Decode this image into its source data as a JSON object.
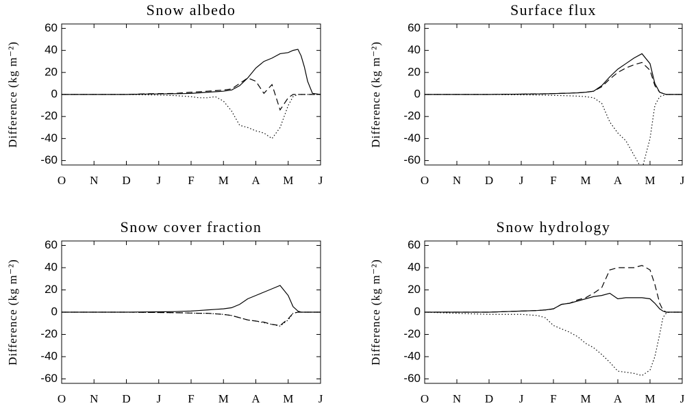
{
  "chart_data": [
    {
      "type": "line",
      "title": "Snow albedo",
      "ylabel": "Difference (kg m⁻²)",
      "x": [
        0,
        2,
        2.5,
        3,
        3.5,
        3.75,
        4,
        4.25,
        4.5,
        4.75,
        5,
        5.25,
        5.5,
        5.75,
        6,
        6.25,
        6.5,
        6.75,
        7,
        7.15,
        7.3,
        7.4,
        7.5,
        7.6,
        7.75,
        8
      ],
      "xlim": [
        0,
        8
      ],
      "ylim": [
        -64,
        64
      ],
      "xticks": [
        {
          "value": 0,
          "label": "O"
        },
        {
          "value": 1,
          "label": "N"
        },
        {
          "value": 2,
          "label": "D"
        },
        {
          "value": 3,
          "label": "J"
        },
        {
          "value": 4,
          "label": "F"
        },
        {
          "value": 5,
          "label": "M"
        },
        {
          "value": 6,
          "label": "A"
        },
        {
          "value": 7,
          "label": "M"
        },
        {
          "value": 8,
          "label": "J"
        }
      ],
      "yticks": [
        -60,
        -40,
        -20,
        0,
        20,
        40,
        60
      ],
      "series": [
        {
          "color": "#000000",
          "linestyle": "solid",
          "values": [
            0,
            0,
            0.3,
            0.5,
            0.7,
            0.8,
            1,
            1.5,
            2,
            2.5,
            3,
            4,
            8,
            15,
            24,
            30,
            33,
            37,
            38,
            40,
            41,
            35,
            25,
            12,
            1,
            0
          ]
        },
        {
          "color": "#000000",
          "linestyle": "dashed",
          "values": [
            0,
            0,
            0.5,
            0.8,
            1,
            1.5,
            2,
            2.5,
            3,
            3.5,
            4,
            5,
            10,
            15,
            12,
            1,
            9,
            -14,
            -3,
            0,
            0,
            0,
            0,
            0,
            0,
            0
          ]
        },
        {
          "color": "#000000",
          "linestyle": "dotted",
          "values": [
            0,
            0,
            -0.3,
            -0.5,
            -1,
            -1.5,
            -2,
            -3,
            -3,
            -2,
            -6,
            -15,
            -28,
            -30,
            -33,
            -35,
            -40,
            -30,
            -10,
            -2,
            0,
            0,
            0,
            0,
            0,
            0
          ]
        }
      ]
    },
    {
      "type": "line",
      "title": "Surface flux",
      "ylabel": "Difference (kg m⁻²)",
      "x": [
        0,
        2,
        2.5,
        3,
        3.5,
        3.75,
        4,
        4.25,
        4.5,
        4.75,
        5,
        5.25,
        5.5,
        5.75,
        6,
        6.25,
        6.5,
        6.75,
        7,
        7.15,
        7.3,
        7.4,
        7.5,
        7.6,
        7.75,
        8
      ],
      "xlim": [
        0,
        8
      ],
      "ylim": [
        -64,
        64
      ],
      "xticks": [
        {
          "value": 0,
          "label": "O"
        },
        {
          "value": 1,
          "label": "N"
        },
        {
          "value": 2,
          "label": "D"
        },
        {
          "value": 3,
          "label": "J"
        },
        {
          "value": 4,
          "label": "F"
        },
        {
          "value": 5,
          "label": "M"
        },
        {
          "value": 6,
          "label": "A"
        },
        {
          "value": 7,
          "label": "M"
        },
        {
          "value": 8,
          "label": "J"
        }
      ],
      "yticks": [
        -60,
        -40,
        -20,
        0,
        20,
        40,
        60
      ],
      "series": [
        {
          "color": "#000000",
          "linestyle": "solid",
          "values": [
            0,
            0,
            0.2,
            0.3,
            0.5,
            0.6,
            0.8,
            1,
            1.2,
            1.5,
            2,
            3,
            8,
            16,
            23,
            28,
            33,
            37,
            28,
            10,
            2,
            1,
            0,
            0,
            0,
            0
          ]
        },
        {
          "color": "#000000",
          "linestyle": "dashed",
          "values": [
            0,
            0,
            0.2,
            0.3,
            0.5,
            0.6,
            0.8,
            1,
            1.2,
            1.5,
            2,
            3,
            7,
            14,
            20,
            24,
            27,
            29,
            22,
            8,
            2,
            1,
            0,
            0,
            0,
            0
          ]
        },
        {
          "color": "#000000",
          "linestyle": "dotted",
          "values": [
            0,
            0,
            -0.2,
            -0.3,
            -0.5,
            -0.6,
            -0.8,
            -1,
            -1.2,
            -1.5,
            -2,
            -3,
            -8,
            -25,
            -35,
            -42,
            -55,
            -68,
            -40,
            -10,
            -2,
            -1,
            0,
            0,
            0,
            0
          ]
        }
      ]
    },
    {
      "type": "line",
      "title": "Snow cover fraction",
      "ylabel": "Difference (kg m⁻²)",
      "x": [
        0,
        2,
        2.5,
        3,
        3.5,
        3.75,
        4,
        4.25,
        4.5,
        4.75,
        5,
        5.25,
        5.5,
        5.75,
        6,
        6.25,
        6.5,
        6.75,
        7,
        7.15,
        7.3,
        7.4,
        7.5,
        7.6,
        7.75,
        8
      ],
      "xlim": [
        0,
        8
      ],
      "ylim": [
        -64,
        64
      ],
      "xticks": [
        {
          "value": 0,
          "label": "O"
        },
        {
          "value": 1,
          "label": "N"
        },
        {
          "value": 2,
          "label": "D"
        },
        {
          "value": 3,
          "label": "J"
        },
        {
          "value": 4,
          "label": "F"
        },
        {
          "value": 5,
          "label": "M"
        },
        {
          "value": 6,
          "label": "A"
        },
        {
          "value": 7,
          "label": "M"
        },
        {
          "value": 8,
          "label": "J"
        }
      ],
      "yticks": [
        -60,
        -40,
        -20,
        0,
        20,
        40,
        60
      ],
      "series": [
        {
          "color": "#000000",
          "linestyle": "solid",
          "values": [
            0,
            0,
            0.2,
            0.3,
            0.5,
            0.8,
            1,
            1.5,
            2,
            2.5,
            3,
            4,
            7,
            12,
            15,
            18,
            21,
            24,
            15,
            5,
            1,
            0,
            0,
            0,
            0,
            0
          ]
        },
        {
          "color": "#000000",
          "linestyle": "dashed",
          "values": [
            0,
            0,
            -0.2,
            -0.3,
            -0.5,
            -0.6,
            -0.8,
            -1,
            -1,
            -1.5,
            -2,
            -3,
            -5,
            -7,
            -8,
            -9,
            -11,
            -12,
            -6,
            -1,
            0,
            0,
            0,
            0,
            0,
            0
          ]
        },
        {
          "color": "#000000",
          "linestyle": "dotted",
          "values": [
            0,
            0,
            -0.2,
            -0.3,
            -0.5,
            -0.6,
            -0.8,
            -1,
            -1,
            -1.5,
            -2,
            -3,
            -5,
            -7,
            -8,
            -9.5,
            -11,
            -12.5,
            -7,
            -1,
            0,
            0,
            0,
            0,
            0,
            0
          ]
        }
      ]
    },
    {
      "type": "line",
      "title": "Snow hydrology",
      "ylabel": "Difference (kg m⁻²)",
      "x": [
        0,
        2,
        2.5,
        3,
        3.5,
        3.75,
        4,
        4.25,
        4.5,
        4.75,
        5,
        5.25,
        5.5,
        5.75,
        6,
        6.25,
        6.5,
        6.75,
        7,
        7.15,
        7.3,
        7.4,
        7.5,
        7.6,
        7.75,
        8
      ],
      "xlim": [
        0,
        8
      ],
      "ylim": [
        -64,
        64
      ],
      "xticks": [
        {
          "value": 0,
          "label": "O"
        },
        {
          "value": 1,
          "label": "N"
        },
        {
          "value": 2,
          "label": "D"
        },
        {
          "value": 3,
          "label": "J"
        },
        {
          "value": 4,
          "label": "F"
        },
        {
          "value": 5,
          "label": "M"
        },
        {
          "value": 6,
          "label": "A"
        },
        {
          "value": 7,
          "label": "M"
        },
        {
          "value": 8,
          "label": "J"
        }
      ],
      "yticks": [
        -60,
        -40,
        -20,
        0,
        20,
        40,
        60
      ],
      "series": [
        {
          "color": "#000000",
          "linestyle": "solid",
          "values": [
            0,
            0,
            0.5,
            1,
            1.5,
            2,
            3,
            7,
            8,
            10,
            12,
            14,
            15,
            17,
            12,
            13,
            13,
            13,
            12,
            8,
            3,
            1,
            0,
            0,
            0,
            0
          ]
        },
        {
          "color": "#000000",
          "linestyle": "dashed",
          "values": [
            0,
            0,
            0.5,
            1,
            1.5,
            2,
            3,
            7,
            8,
            11,
            13,
            17,
            22,
            38,
            40,
            40,
            40,
            42,
            38,
            25,
            8,
            2,
            0,
            0,
            0,
            0
          ]
        },
        {
          "color": "#000000",
          "linestyle": "dotted",
          "values": [
            0,
            -2,
            -2,
            -2,
            -3,
            -5,
            -12,
            -15,
            -18,
            -22,
            -28,
            -32,
            -38,
            -45,
            -53,
            -54,
            -55,
            -57,
            -52,
            -40,
            -20,
            -5,
            -1,
            0,
            0,
            0
          ]
        }
      ]
    }
  ]
}
